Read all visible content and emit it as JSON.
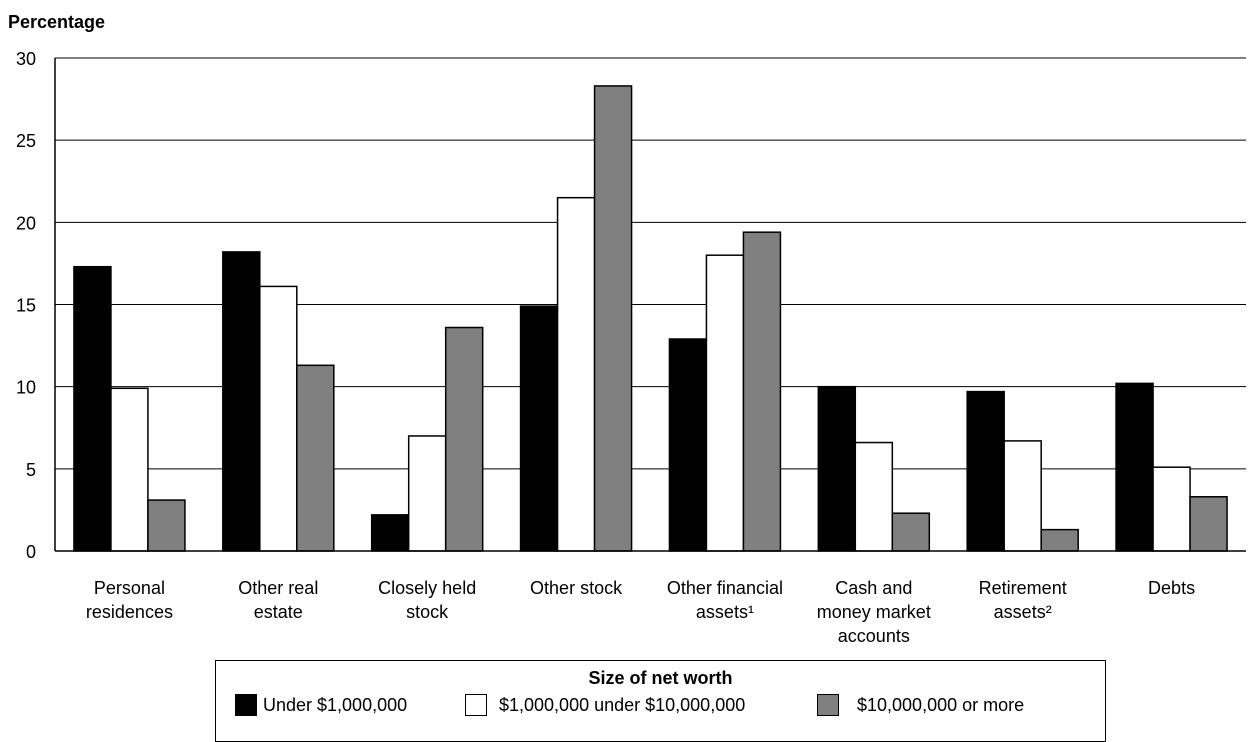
{
  "chart_data": {
    "type": "bar",
    "ylabel": "Percentage",
    "ylim": [
      0,
      30
    ],
    "yticks": [
      0,
      5,
      10,
      15,
      20,
      25,
      30
    ],
    "categories": [
      [
        "Personal",
        "residences"
      ],
      [
        "Other real",
        "estate"
      ],
      [
        "Closely held",
        "stock"
      ],
      [
        "Other stock"
      ],
      [
        "Other financial",
        "assets¹"
      ],
      [
        "Cash and",
        "money market",
        "accounts"
      ],
      [
        "Retirement",
        "assets²"
      ],
      [
        "Debts"
      ]
    ],
    "series": [
      {
        "name": "Under $1,000,000",
        "color": "#000000",
        "values": [
          17.3,
          18.2,
          2.2,
          14.9,
          12.9,
          10.0,
          9.7,
          10.2
        ]
      },
      {
        "name": "$1,000,000 under $10,000,000",
        "color": "#ffffff",
        "values": [
          9.9,
          16.1,
          7.0,
          21.5,
          18.0,
          6.6,
          6.7,
          5.1
        ]
      },
      {
        "name": "$10,000,000 or more",
        "color": "#808080",
        "values": [
          3.1,
          11.3,
          13.6,
          28.3,
          19.4,
          2.3,
          1.3,
          3.3
        ]
      }
    ],
    "grid": true,
    "legend": {
      "title": "Size of net worth",
      "placement": "bottom"
    }
  }
}
